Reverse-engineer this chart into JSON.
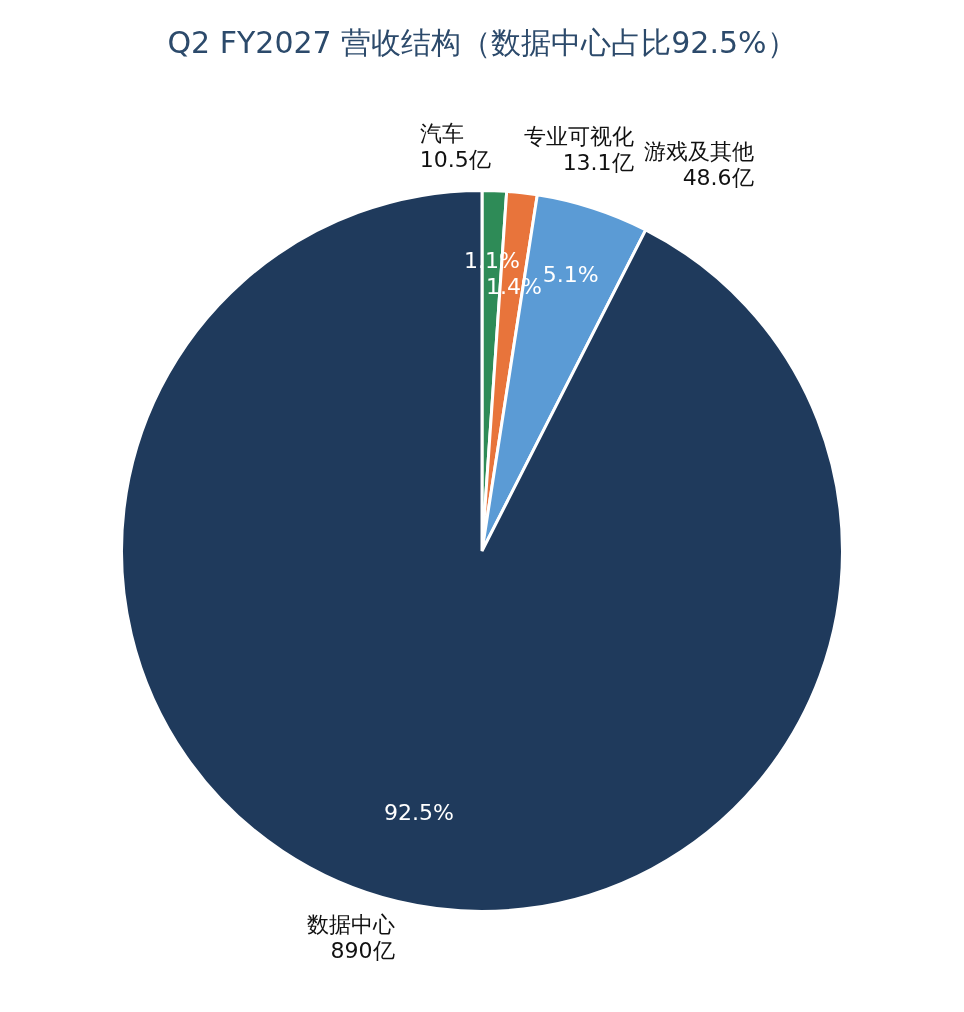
{
  "chart_data": {
    "type": "pie",
    "title": "Q2 FY2027 营收结构（数据中心占比92.5%）",
    "categories": [
      "汽车",
      "专业可视化",
      "游戏及其他",
      "数据中心"
    ],
    "values": [
      10.5,
      13.1,
      48.6,
      890
    ],
    "colors": [
      "#2e8b57",
      "#e8743b",
      "#5b9bd5",
      "#1f3a5c"
    ],
    "value_labels": [
      "10.5亿",
      "13.1亿",
      "48.6亿",
      "890亿"
    ],
    "annotations": [
      {
        "text": "1.1%",
        "x": "汽车"
      },
      {
        "text": "1.4%",
        "x": "专业可视化"
      },
      {
        "text": "5.1%",
        "x": "游戏及其他"
      },
      {
        "text": "92.5%",
        "x": "数据中心"
      }
    ],
    "legend": false
  }
}
